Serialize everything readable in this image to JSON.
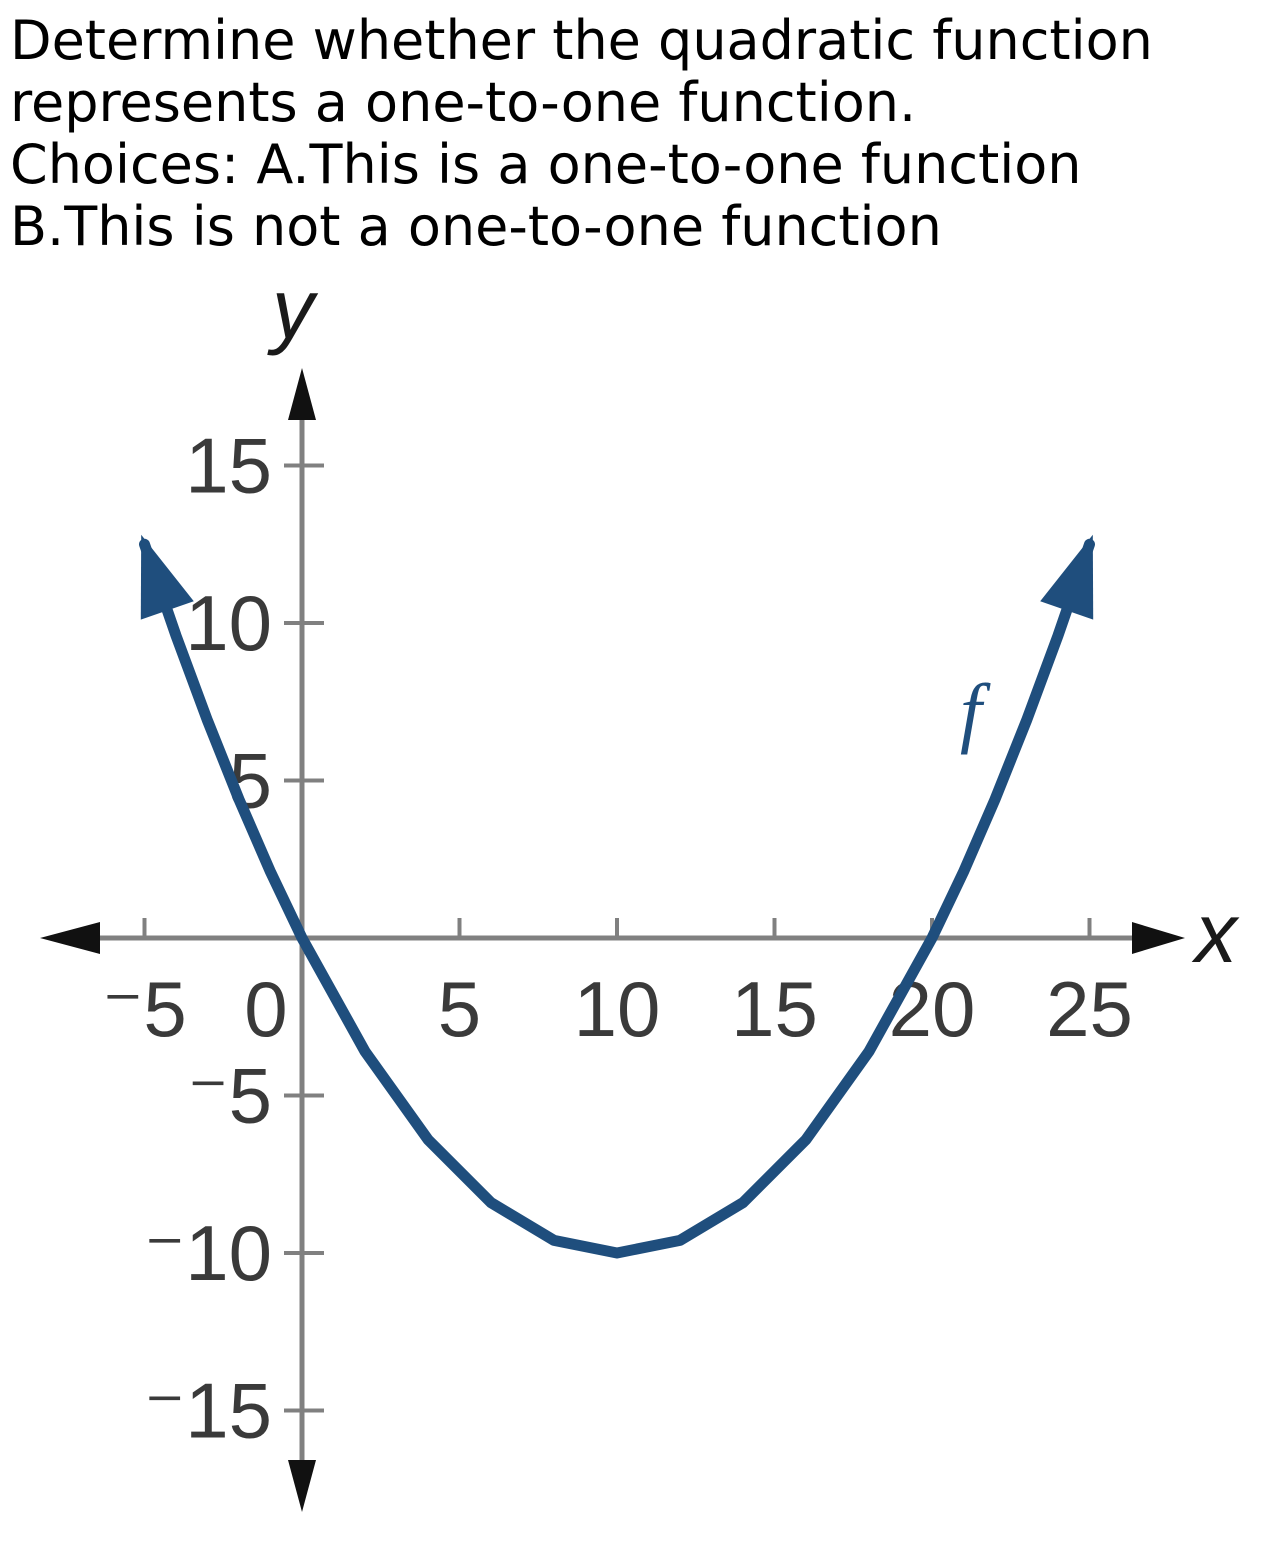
{
  "question": {
    "lines": [
      "Determine whether the quadratic function",
      "represents a one-to-one function.",
      "Choices: A.This is a one-to-one function",
      "B.This is not a one-to-one function"
    ]
  },
  "chart_data": {
    "type": "line",
    "title": "",
    "xlabel": "x",
    "ylabel": "y",
    "xlim": [
      -5,
      25
    ],
    "ylim": [
      -15,
      15
    ],
    "x_ticks": [
      -5,
      0,
      5,
      10,
      15,
      20,
      25
    ],
    "y_ticks": [
      -15,
      -10,
      -5,
      5,
      10,
      15
    ],
    "x_tick_labels": [
      "⁻5",
      "0",
      "5",
      "10",
      "15",
      "20",
      "25"
    ],
    "y_tick_labels": [
      "⁻15",
      "⁻10",
      "⁻5",
      "5",
      "10",
      "15"
    ],
    "grid": false,
    "series": [
      {
        "name": "f",
        "x": [
          -5,
          -4,
          -3,
          -2,
          -1,
          0,
          2,
          4,
          6,
          8,
          10,
          12,
          14,
          16,
          18,
          20,
          21,
          22,
          23,
          24,
          25
        ],
        "y": [
          12.5,
          9.6,
          6.9,
          4.4,
          2.1,
          0,
          -3.6,
          -6.4,
          -8.4,
          -9.6,
          -10,
          -9.6,
          -8.4,
          -6.4,
          -3.6,
          0,
          2.1,
          4.4,
          6.9,
          9.6,
          12.5
        ],
        "arrows": "both",
        "color": "#1f4e7d"
      }
    ],
    "axis_color": "#808080",
    "label_color": "#3a3a3a"
  }
}
